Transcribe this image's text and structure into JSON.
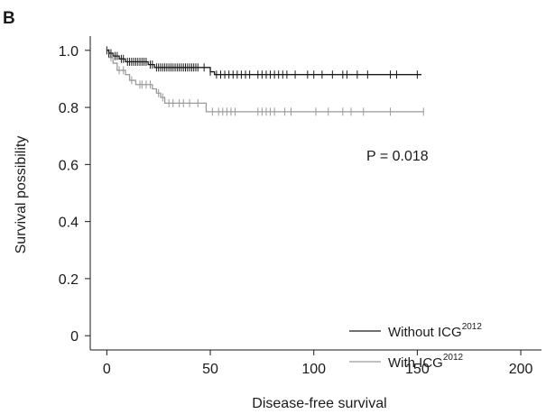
{
  "panel_label": "B",
  "chart_data": {
    "type": "line",
    "title": "",
    "xlabel": "Disease-free survival",
    "ylabel": "Survival possibility",
    "xlim": [
      -8,
      210
    ],
    "ylim": [
      -0.05,
      1.05
    ],
    "x_ticks": [
      0,
      50,
      100,
      150,
      200
    ],
    "y_ticks": [
      0,
      0.2,
      0.4,
      0.6,
      0.8,
      1.0
    ],
    "x_tick_labels": [
      "0",
      "50",
      "100",
      "150",
      "200"
    ],
    "y_tick_labels": [
      "0",
      "0.2",
      "0.4",
      "0.6",
      "0.8",
      "1.0"
    ],
    "grid": false,
    "legend_position": "bottom-right",
    "annotation": "P = 0.018",
    "series": [
      {
        "name": "Without ICG",
        "superscript": "2012",
        "color": "#1a1a1a",
        "steps": [
          [
            0,
            1.0
          ],
          [
            1,
            0.99
          ],
          [
            3,
            0.98
          ],
          [
            6,
            0.97
          ],
          [
            9,
            0.96
          ],
          [
            20,
            0.95
          ],
          [
            23,
            0.94
          ],
          [
            50,
            0.925
          ],
          [
            52,
            0.915
          ],
          [
            152,
            0.915
          ]
        ],
        "censored": [
          0,
          1,
          2,
          4,
          5,
          7,
          8,
          10,
          11,
          12,
          13,
          14,
          15,
          16,
          17,
          18,
          19,
          21,
          22,
          24,
          25,
          26,
          27,
          28,
          29,
          30,
          31,
          32,
          33,
          34,
          35,
          36,
          37,
          38,
          39,
          40,
          41,
          42,
          43,
          44,
          47,
          50,
          53,
          55,
          57,
          59,
          61,
          63,
          65,
          67,
          69,
          73,
          75,
          77,
          79,
          81,
          83,
          85,
          87,
          91,
          97,
          100,
          104,
          109,
          114,
          116,
          121,
          126,
          137,
          140,
          150
        ]
      },
      {
        "name": "With ICG",
        "superscript": "2012",
        "color": "#9a9a9a",
        "steps": [
          [
            0,
            1.0
          ],
          [
            1,
            0.975
          ],
          [
            3,
            0.955
          ],
          [
            5,
            0.93
          ],
          [
            9,
            0.915
          ],
          [
            11,
            0.895
          ],
          [
            14,
            0.88
          ],
          [
            22,
            0.865
          ],
          [
            24,
            0.85
          ],
          [
            26,
            0.835
          ],
          [
            28,
            0.815
          ],
          [
            48,
            0.785
          ],
          [
            153,
            0.785
          ]
        ],
        "censored": [
          2,
          6,
          8,
          12,
          16,
          17,
          19,
          21,
          25,
          27,
          30,
          32,
          35,
          37,
          40,
          44,
          51,
          54,
          56,
          58,
          60,
          62,
          73,
          75,
          77,
          79,
          81,
          86,
          89,
          101,
          107,
          114,
          118,
          124,
          137,
          153
        ]
      }
    ]
  }
}
